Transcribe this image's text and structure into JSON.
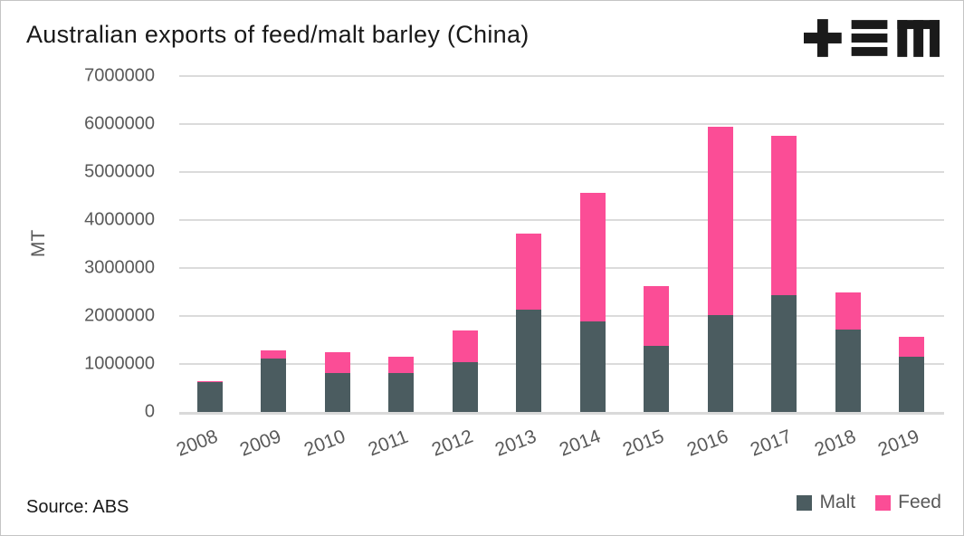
{
  "header": {
    "title": "Australian exports of feed/malt barley (China)",
    "logo_icon": "plus-equals-m-logo",
    "logo_color": "#1a1a1a"
  },
  "footer": {
    "source": "Source: ABS"
  },
  "legend": {
    "position": "bottom-right"
  },
  "colors": {
    "malt": "#4b5c60",
    "feed": "#fb4d96",
    "gridline": "#dbdbdb",
    "axis_text": "#595959",
    "title_text": "#191919"
  },
  "chart_data": {
    "type": "bar",
    "stacked": true,
    "title": "Australian exports of feed/malt barley (China)",
    "xlabel": "",
    "ylabel": "MT",
    "ylim": [
      0,
      7000000
    ],
    "ytick_step": 1000000,
    "yticks": [
      0,
      1000000,
      2000000,
      3000000,
      4000000,
      5000000,
      6000000,
      7000000
    ],
    "grid": true,
    "x_tick_rotation_deg": -21,
    "legend_position": "bottom-right",
    "categories": [
      "2008",
      "2009",
      "2010",
      "2011",
      "2012",
      "2013",
      "2014",
      "2015",
      "2016",
      "2017",
      "2018",
      "2019"
    ],
    "series": [
      {
        "name": "Malt",
        "color": "#4b5c60",
        "values": [
          620000,
          1120000,
          810000,
          810000,
          1030000,
          2130000,
          1890000,
          1370000,
          2010000,
          2440000,
          1720000,
          1150000
        ]
      },
      {
        "name": "Feed",
        "color": "#fb4d96",
        "values": [
          25000,
          160000,
          440000,
          350000,
          670000,
          1590000,
          2680000,
          1250000,
          3930000,
          3310000,
          770000,
          420000
        ]
      }
    ]
  }
}
